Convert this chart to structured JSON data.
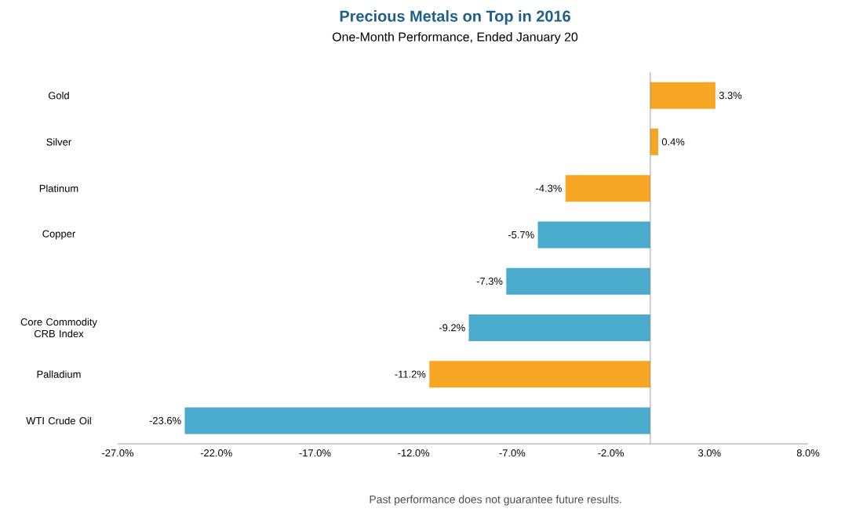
{
  "chart_data": {
    "type": "bar",
    "orientation": "horizontal",
    "title": "Precious Metals on Top in 2016",
    "subtitle": "One-Month Performance, Ended January 20",
    "categories": [
      "Gold",
      "Silver",
      "Platinum",
      "Copper",
      null,
      "Core Commodity CRB Index",
      "Palladium",
      "WTI Crude Oil"
    ],
    "values": [
      3.3,
      0.4,
      -4.3,
      -5.7,
      -7.3,
      -9.2,
      -11.2,
      -23.6
    ],
    "value_labels": [
      "3.3%",
      "0.4%",
      "-4.3%",
      "-5.7%",
      "-7.3%",
      "-9.2%",
      "-11.2%",
      "-23.6%"
    ],
    "colors": [
      "#f6a623",
      "#f6a623",
      "#f6a623",
      "#4aabcc",
      "#4aabcc",
      "#4aabcc",
      "#f6a623",
      "#4aabcc"
    ],
    "xlim": [
      -27,
      8
    ],
    "xticks": [
      {
        "value": -27,
        "label": "-27.0%"
      },
      {
        "value": -22,
        "label": "-22.0%"
      },
      {
        "value": -17,
        "label": "-17.0%"
      },
      {
        "value": -12,
        "label": "-12.0%"
      },
      {
        "value": -7,
        "label": "-7.0%"
      },
      {
        "value": -2,
        "label": "-2.0%"
      },
      {
        "value": 3,
        "label": "3.0%"
      },
      {
        "value": 8,
        "label": "8.0%"
      }
    ],
    "grid": false,
    "annotations": [
      "Past performance does not guarantee future results."
    ]
  }
}
